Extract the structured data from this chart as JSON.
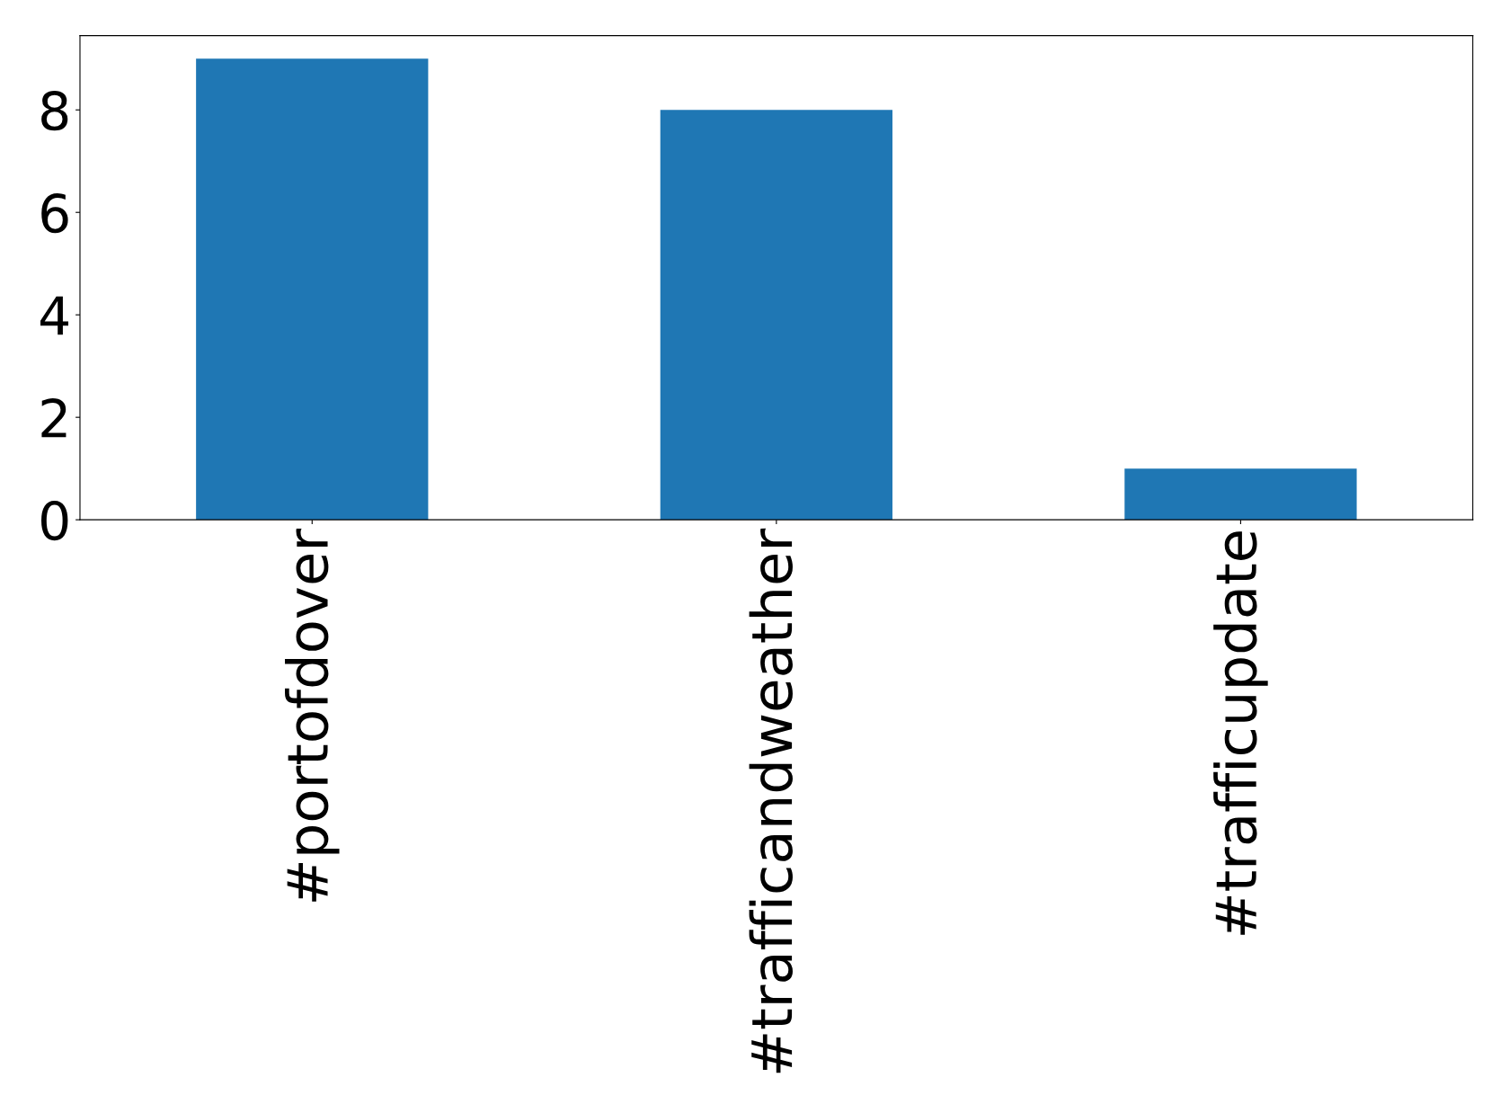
{
  "chart_data": {
    "type": "bar",
    "categories": [
      "#portofdover",
      "#trafficandweather",
      "#trafficupdate"
    ],
    "values": [
      9,
      8,
      1
    ],
    "color": "#1f77b4",
    "ylim": [
      0,
      9.45
    ],
    "yticks": [
      0,
      2,
      4,
      6,
      8
    ],
    "grid": false
  }
}
